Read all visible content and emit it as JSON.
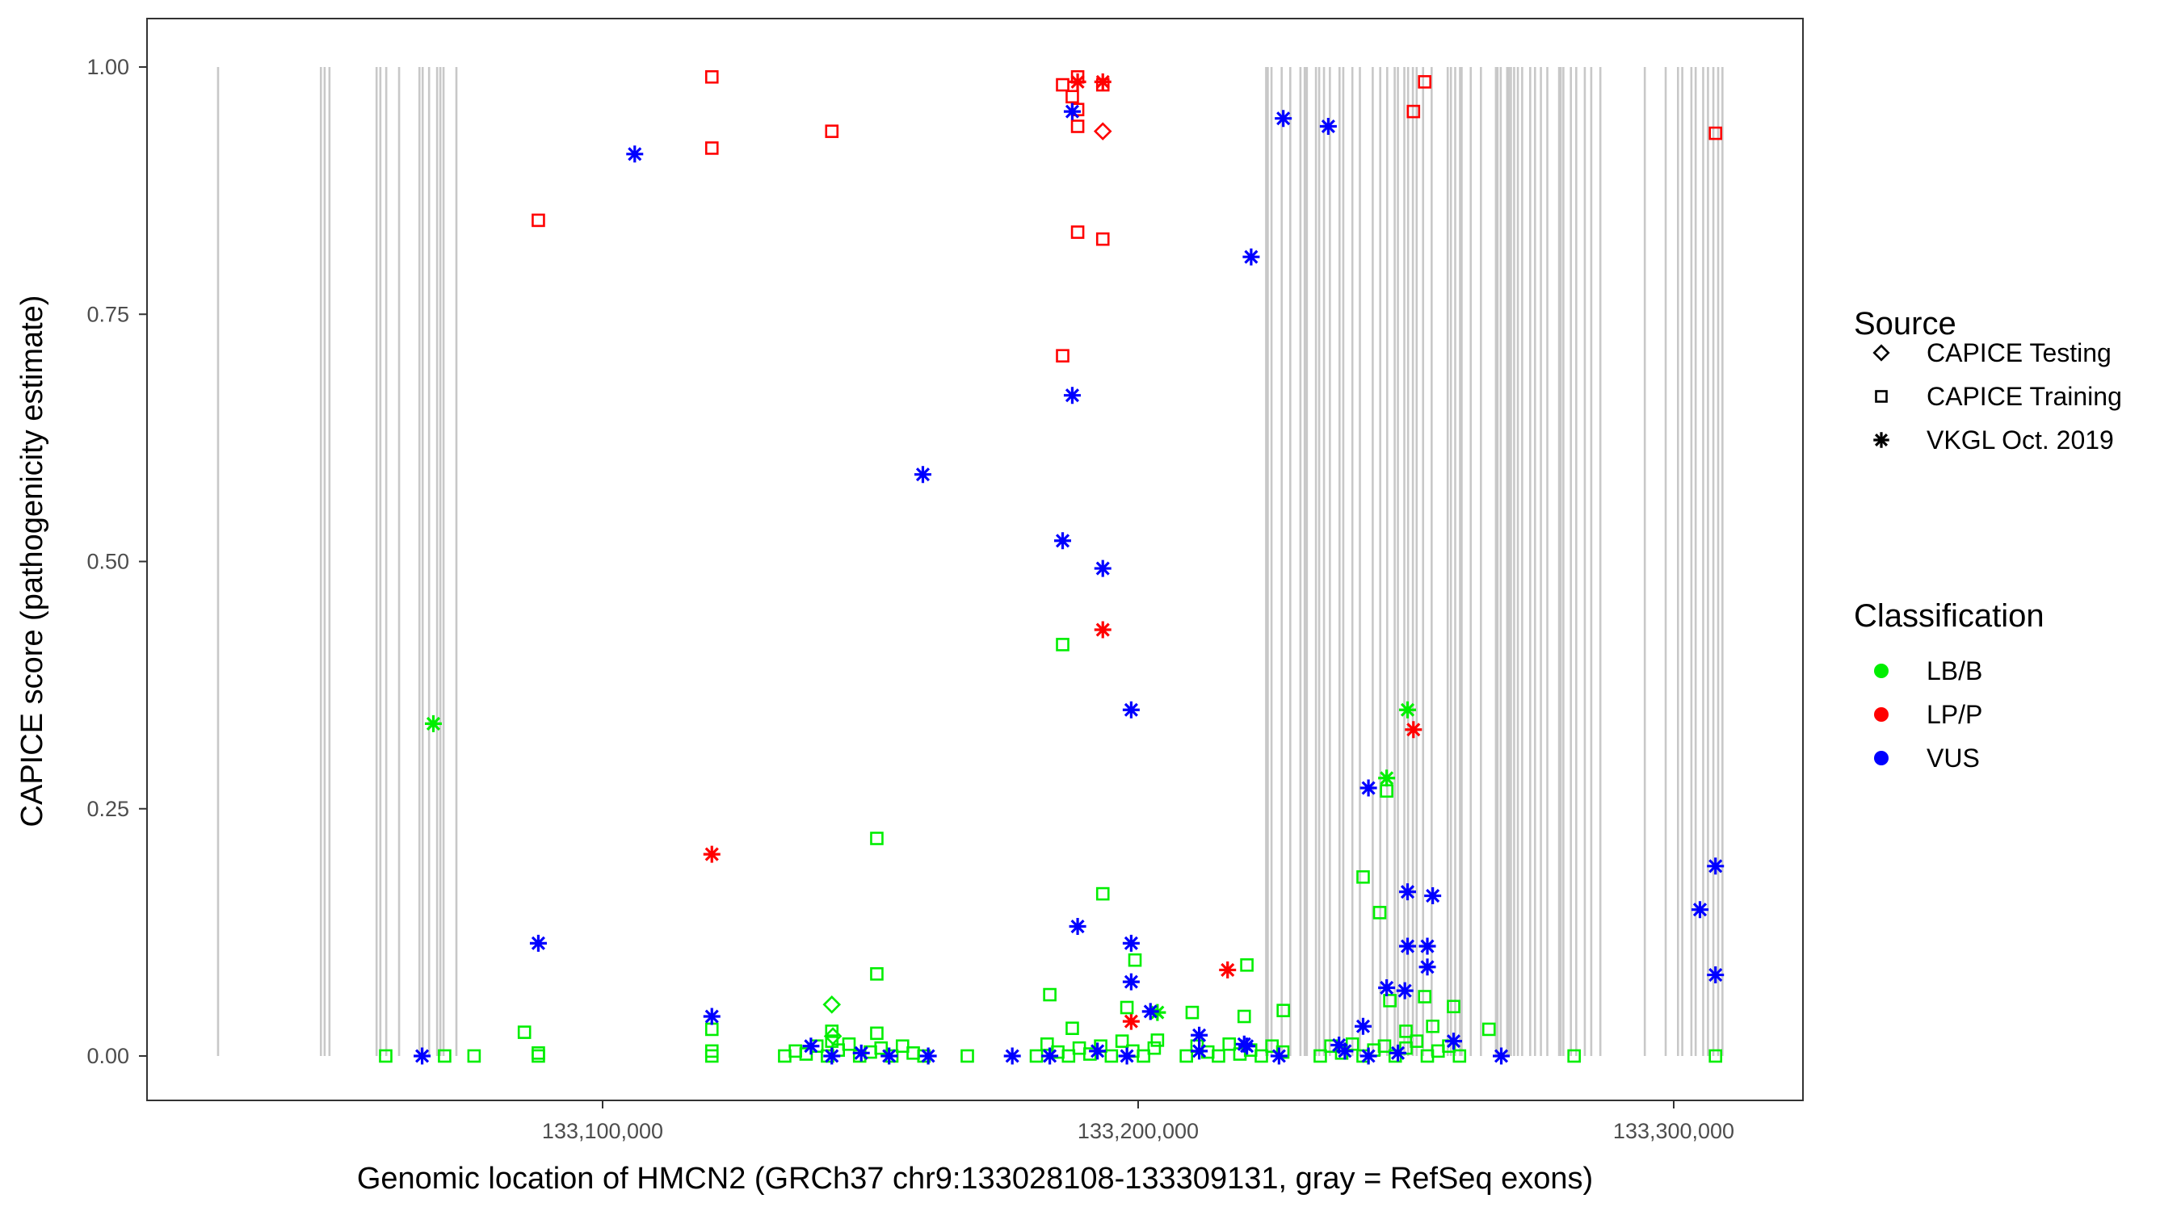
{
  "chart_data": {
    "type": "scatter",
    "xlabel": "Genomic location of HMCN2 (GRCh37 chr9:133028108-133309131, gray = RefSeq exons)",
    "ylabel": "CAPICE score (pathogenicity estimate)",
    "xlim": [
      133013900,
      133323400
    ],
    "ylim": [
      -0.045,
      1.045
    ],
    "x_ticks": [
      133100000,
      133200000,
      133300000
    ],
    "x_tick_labels": [
      "133,100,000",
      "133,200,000",
      "133,300,000"
    ],
    "y_ticks": [
      0,
      0.25,
      0.5,
      0.75,
      1.0
    ],
    "y_tick_labels": [
      "0.00",
      "0.25",
      "0.50",
      "0.75",
      "1.00"
    ],
    "grid": false,
    "legend_placement": "right",
    "legend": {
      "source_title": "Source",
      "sources": [
        {
          "key": "testing",
          "label": "CAPICE Testing",
          "shape": "diamond"
        },
        {
          "key": "training",
          "label": "CAPICE Training",
          "shape": "square"
        },
        {
          "key": "vkgl",
          "label": "VKGL Oct. 2019",
          "shape": "asterisk"
        }
      ],
      "class_title": "Classification",
      "classes": [
        {
          "key": "LB/B",
          "label": "LB/B",
          "color": "#00ee00"
        },
        {
          "key": "LP/P",
          "label": "LP/P",
          "color": "#ff0000"
        },
        {
          "key": "VUS",
          "label": "VUS",
          "color": "#0000ff"
        }
      ]
    },
    "exon_color": "#c8c8c8",
    "exons": [
      133028200,
      133047400,
      133048100,
      133049000,
      133057800,
      133058500,
      133059600,
      133062000,
      133065800,
      133066400,
      133067600,
      133069100,
      133069700,
      133070300,
      133072700,
      133223900,
      133224200,
      133224900,
      133226800,
      133228400,
      133230300,
      133231100,
      133231500,
      133233200,
      133233800,
      133234700,
      133235800,
      133237600,
      133238300,
      133240000,
      133241400,
      133243800,
      133245200,
      133246500,
      133247900,
      133248500,
      133249700,
      133250400,
      133251300,
      133252000,
      133253200,
      133254800,
      133257800,
      133258400,
      133259200,
      133260100,
      133260400,
      133262100,
      133264000,
      133266800,
      133267100,
      133267700,
      133268900,
      133269200,
      133269600,
      133270200,
      133270900,
      133271700,
      133273200,
      133274100,
      133275200,
      133276400,
      133278600,
      133278900,
      133279400,
      133280800,
      133281800,
      133283400,
      133284600,
      133286300,
      133294600,
      133298500,
      133300800,
      133301600,
      133303300,
      133304100,
      133305500,
      133306400,
      133307400,
      133308300,
      133309100
    ],
    "point_fields": [
      "source",
      "classification",
      "position",
      "score"
    ],
    "series": [
      {
        "source": "training",
        "classification": "LP/P",
        "points": [
          [
            133120400,
            0.99
          ],
          [
            133088000,
            0.845
          ],
          [
            133120400,
            0.918
          ],
          [
            133142800,
            0.935
          ],
          [
            133185900,
            0.982
          ],
          [
            133187700,
            0.97
          ],
          [
            133188700,
            0.99
          ],
          [
            133188700,
            0.957
          ],
          [
            133188700,
            0.94
          ],
          [
            133188700,
            0.833
          ],
          [
            133193400,
            0.982
          ],
          [
            133193400,
            0.826
          ],
          [
            133185900,
            0.708
          ],
          [
            133251400,
            0.955
          ],
          [
            133253500,
            0.985
          ],
          [
            133307800,
            0.933
          ]
        ]
      },
      {
        "source": "testing",
        "classification": "LP/P",
        "points": [
          [
            133193400,
            0.935
          ]
        ]
      },
      {
        "source": "vkgl",
        "classification": "LP/P",
        "points": [
          [
            133193400,
            0.985
          ],
          [
            133188700,
            0.985
          ],
          [
            133120400,
            0.204
          ],
          [
            133193400,
            0.431
          ],
          [
            133251400,
            0.33
          ],
          [
            133216700,
            0.087
          ],
          [
            133198700,
            0.035
          ]
        ]
      },
      {
        "source": "training",
        "classification": "LB/B",
        "points": [
          [
            133151200,
            0.22
          ],
          [
            133185900,
            0.416
          ],
          [
            133193400,
            0.164
          ],
          [
            133151200,
            0.083
          ],
          [
            133220300,
            0.092
          ],
          [
            133199400,
            0.097
          ],
          [
            133183500,
            0.062
          ],
          [
            133242000,
            0.181
          ],
          [
            133245100,
            0.145
          ],
          [
            133246400,
            0.268
          ],
          [
            133253500,
            0.06
          ],
          [
            133258900,
            0.05
          ],
          [
            133197900,
            0.049
          ],
          [
            133227100,
            0.046
          ],
          [
            133210100,
            0.044
          ],
          [
            133219800,
            0.04
          ],
          [
            133187700,
            0.028
          ],
          [
            133085400,
            0.024
          ],
          [
            133265500,
            0.027
          ],
          [
            133120400,
            0.027
          ],
          [
            133151200,
            0.023
          ],
          [
            133247000,
            0.056
          ],
          [
            133203600,
            0.016
          ],
          [
            133281400,
            0
          ],
          [
            133307800,
            0
          ],
          [
            133059500,
            0
          ],
          [
            133070500,
            0
          ],
          [
            133076000,
            0
          ],
          [
            133088000,
            0.003
          ],
          [
            133088000,
            0
          ],
          [
            133168100,
            0
          ],
          [
            133120400,
            0.005
          ],
          [
            133120400,
            0
          ],
          [
            133142800,
            0.025
          ],
          [
            133142800,
            0.015
          ],
          [
            133250000,
            0.025
          ],
          [
            133255000,
            0.03
          ],
          [
            133134000,
            0
          ],
          [
            133136000,
            0.005
          ],
          [
            133138000,
            0.002
          ],
          [
            133140000,
            0.01
          ],
          [
            133142000,
            0
          ],
          [
            133144000,
            0.006
          ],
          [
            133146000,
            0.012
          ],
          [
            133148000,
            0
          ],
          [
            133150000,
            0.004
          ],
          [
            133152000,
            0.008
          ],
          [
            133154000,
            0
          ],
          [
            133156000,
            0.01
          ],
          [
            133158000,
            0.003
          ],
          [
            133160000,
            0
          ],
          [
            133181000,
            0
          ],
          [
            133183000,
            0.012
          ],
          [
            133185000,
            0.004
          ],
          [
            133187000,
            0
          ],
          [
            133189000,
            0.008
          ],
          [
            133191000,
            0.002
          ],
          [
            133193000,
            0.01
          ],
          [
            133195000,
            0
          ],
          [
            133197000,
            0.015
          ],
          [
            133199000,
            0.005
          ],
          [
            133201000,
            0
          ],
          [
            133203000,
            0.008
          ],
          [
            133209000,
            0
          ],
          [
            133211000,
            0.01
          ],
          [
            133213000,
            0.004
          ],
          [
            133215000,
            0
          ],
          [
            133217000,
            0.012
          ],
          [
            133219000,
            0.002
          ],
          [
            133221000,
            0.006
          ],
          [
            133223000,
            0
          ],
          [
            133225000,
            0.01
          ],
          [
            133227000,
            0.004
          ],
          [
            133234000,
            0
          ],
          [
            133236000,
            0.01
          ],
          [
            133238000,
            0.003
          ],
          [
            133240000,
            0.012
          ],
          [
            133242000,
            0
          ],
          [
            133244000,
            0.006
          ],
          [
            133246000,
            0.01
          ],
          [
            133248000,
            0
          ],
          [
            133250000,
            0.008
          ],
          [
            133252000,
            0.015
          ],
          [
            133254000,
            0
          ],
          [
            133256000,
            0.005
          ],
          [
            133258000,
            0.01
          ],
          [
            133260000,
            0
          ]
        ]
      },
      {
        "source": "testing",
        "classification": "LB/B",
        "points": [
          [
            133142800,
            0.052
          ],
          [
            133143000,
            0.02
          ]
        ]
      },
      {
        "source": "vkgl",
        "classification": "LB/B",
        "points": [
          [
            133068400,
            0.336
          ],
          [
            133250300,
            0.35
          ],
          [
            133246400,
            0.281
          ],
          [
            133203600,
            0.044
          ]
        ]
      },
      {
        "source": "vkgl",
        "classification": "VUS",
        "points": [
          [
            133106000,
            0.912
          ],
          [
            133187700,
            0.955
          ],
          [
            133227100,
            0.948
          ],
          [
            133235500,
            0.94
          ],
          [
            133221100,
            0.808
          ],
          [
            133187700,
            0.668
          ],
          [
            133159800,
            0.588
          ],
          [
            133185900,
            0.521
          ],
          [
            133193400,
            0.493
          ],
          [
            133198700,
            0.35
          ],
          [
            133243000,
            0.271
          ],
          [
            133088000,
            0.114
          ],
          [
            133120400,
            0.04
          ],
          [
            133307800,
            0.192
          ],
          [
            133304900,
            0.148
          ],
          [
            133307800,
            0.082
          ],
          [
            133188700,
            0.131
          ],
          [
            133198700,
            0.114
          ],
          [
            133198700,
            0.075
          ],
          [
            133250300,
            0.166
          ],
          [
            133255000,
            0.162
          ],
          [
            133250300,
            0.111
          ],
          [
            133254000,
            0.111
          ],
          [
            133254000,
            0.09
          ],
          [
            133246400,
            0.069
          ],
          [
            133249800,
            0.066
          ],
          [
            133242000,
            0.03
          ],
          [
            133237500,
            0.011
          ],
          [
            133202300,
            0.045
          ],
          [
            133211400,
            0.021
          ],
          [
            133066300,
            0
          ],
          [
            133138900,
            0.01
          ],
          [
            133142800,
            0
          ],
          [
            133148300,
            0.003
          ],
          [
            133153500,
            0
          ],
          [
            133160800,
            0
          ],
          [
            133176500,
            0
          ],
          [
            133183500,
            0
          ],
          [
            133192400,
            0.005
          ],
          [
            133197900,
            0
          ],
          [
            133211400,
            0.005
          ],
          [
            133219800,
            0.012
          ],
          [
            133220300,
            0.01
          ],
          [
            133226300,
            0
          ],
          [
            133238600,
            0.005
          ],
          [
            133243000,
            0
          ],
          [
            133248500,
            0.003
          ],
          [
            133258900,
            0.015
          ],
          [
            133267800,
            0
          ]
        ]
      }
    ]
  }
}
